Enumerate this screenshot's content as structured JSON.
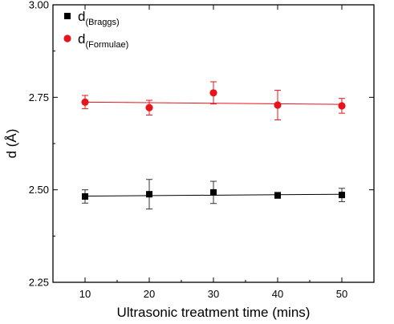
{
  "chart_data": {
    "type": "scatter",
    "xlabel": "Ultrasonic treatment time (mins)",
    "ylabel": "d (Å)",
    "xlim": [
      5,
      55
    ],
    "ylim": [
      2.25,
      3.0
    ],
    "x_ticks": [
      10,
      20,
      30,
      40,
      50
    ],
    "x_tick_labels": [
      "10",
      "20",
      "30",
      "40",
      "50"
    ],
    "y_ticks": [
      2.25,
      2.5,
      2.75,
      3.0
    ],
    "y_tick_labels": [
      "2.25",
      "2.50",
      "2.75",
      "3.00"
    ],
    "y_minor_ticks": [
      2.375,
      2.625,
      2.875
    ],
    "grid": false,
    "legend_position": "top-left",
    "series": [
      {
        "name_main": "d",
        "name_sub": "(Braggs)",
        "color": "#000000",
        "marker": "square",
        "x": [
          10,
          20,
          30,
          40,
          50
        ],
        "y": [
          2.482,
          2.488,
          2.493,
          2.485,
          2.486
        ],
        "yerr": [
          0.018,
          0.04,
          0.03,
          0.008,
          0.018
        ],
        "fit": [
          2.483,
          2.488
        ]
      },
      {
        "name_main": "d",
        "name_sub": "(Formulae)",
        "color": "#e8141c",
        "marker": "circle",
        "x": [
          10,
          20,
          30,
          40,
          50
        ],
        "y": [
          2.737,
          2.722,
          2.762,
          2.729,
          2.727
        ],
        "yerr": [
          0.018,
          0.02,
          0.03,
          0.04,
          0.02
        ],
        "fit": [
          2.737,
          2.731
        ]
      }
    ]
  }
}
